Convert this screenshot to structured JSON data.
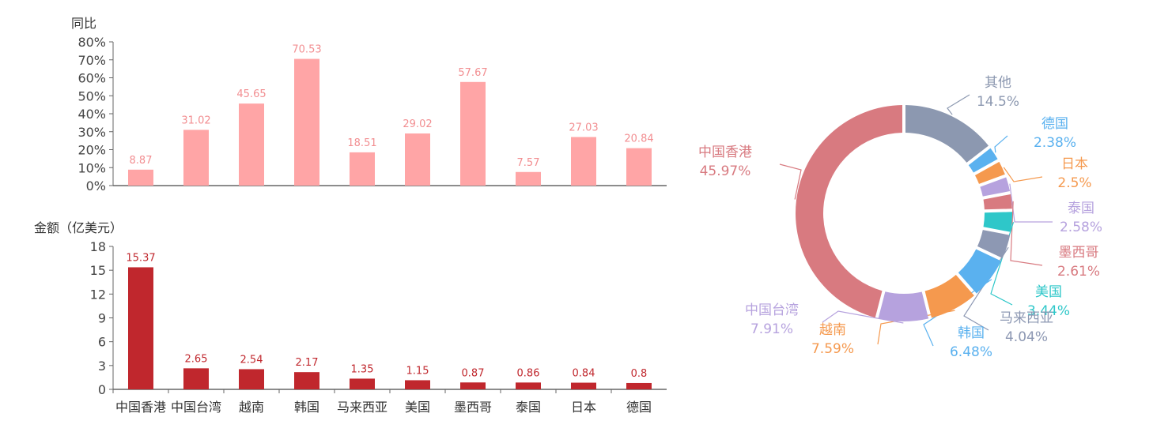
{
  "chart_data": [
    {
      "type": "bar",
      "ylabel": "同比",
      "categories": [
        "中国香港",
        "中国台湾",
        "越南",
        "韩国",
        "马来西亚",
        "美国",
        "墨西哥",
        "泰国",
        "日本",
        "德国"
      ],
      "values": [
        8.87,
        31.02,
        45.65,
        70.53,
        18.51,
        29.02,
        57.67,
        7.57,
        27.03,
        20.84
      ],
      "data_labels": [
        "8.87",
        "31.02",
        "45.65",
        "70.53",
        "18.51",
        "29.02",
        "57.67",
        "7.57",
        "27.03",
        "20.84"
      ],
      "ylim": [
        0,
        80
      ],
      "yticks": [
        "0%",
        "10%",
        "20%",
        "30%",
        "40%",
        "50%",
        "60%",
        "70%",
        "80%"
      ],
      "color": "#ffa5a6"
    },
    {
      "type": "bar",
      "ylabel": "金额（亿美元）",
      "categories": [
        "中国香港",
        "中国台湾",
        "越南",
        "韩国",
        "马来西亚",
        "美国",
        "墨西哥",
        "泰国",
        "日本",
        "德国"
      ],
      "values": [
        15.37,
        2.65,
        2.54,
        2.17,
        1.35,
        1.15,
        0.87,
        0.86,
        0.84,
        0.8
      ],
      "data_labels": [
        "15.37",
        "2.65",
        "2.54",
        "2.17",
        "1.35",
        "1.15",
        "0.87",
        "0.86",
        "0.84",
        "0.8"
      ],
      "ylim": [
        0,
        18
      ],
      "yticks": [
        "0",
        "3",
        "6",
        "9",
        "12",
        "15",
        "18"
      ],
      "color": "#c0272d"
    },
    {
      "type": "pie",
      "variant": "donut",
      "slices": [
        {
          "name": "其他",
          "label": "14.5%",
          "value": 14.5,
          "color": "#8c98b0"
        },
        {
          "name": "德国",
          "label": "2.38%",
          "value": 2.38,
          "color": "#5ab1ef"
        },
        {
          "name": "日本",
          "label": "2.5%",
          "value": 2.5,
          "color": "#f5994e"
        },
        {
          "name": "泰国",
          "label": "2.58%",
          "value": 2.58,
          "color": "#b6a2de"
        },
        {
          "name": "墨西哥",
          "label": "2.61%",
          "value": 2.61,
          "color": "#d87a80"
        },
        {
          "name": "美国",
          "label": "3.44%",
          "value": 3.44,
          "color": "#2ec7c9"
        },
        {
          "name": "马来西亚",
          "label": "4.04%",
          "value": 4.04,
          "color": "#8d98b3"
        },
        {
          "name": "韩国",
          "label": "6.48%",
          "value": 6.48,
          "color": "#5ab1ef"
        },
        {
          "name": "越南",
          "label": "7.59%",
          "value": 7.59,
          "color": "#f5994e"
        },
        {
          "name": "中国台湾",
          "label": "7.91%",
          "value": 7.91,
          "color": "#b6a2de"
        },
        {
          "name": "中国香港",
          "label": "45.97%",
          "value": 45.97,
          "color": "#d87a80"
        }
      ]
    }
  ]
}
